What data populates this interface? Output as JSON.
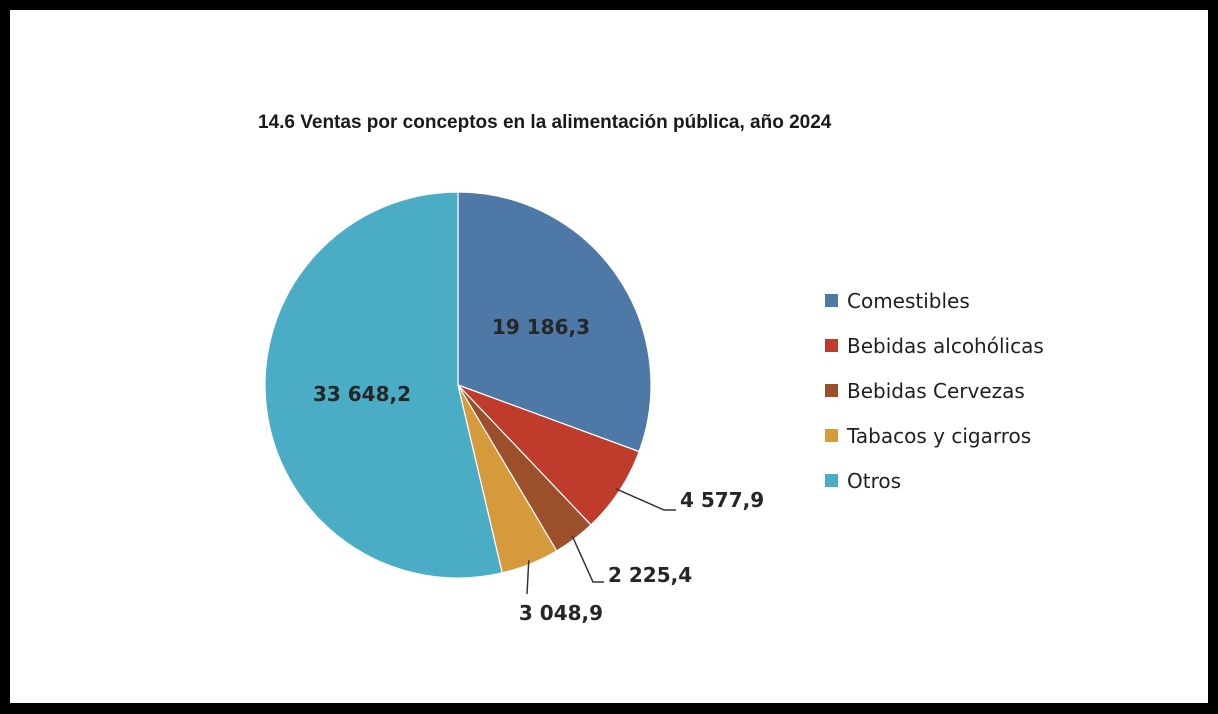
{
  "chart_data": {
    "type": "pie",
    "title": "14.6 Ventas por conceptos en la alimentación pública, año 2024",
    "slices": [
      {
        "name": "Comestibles",
        "value": 19186.3,
        "label": "19 186,3",
        "color": "#4e79a7"
      },
      {
        "name": "Bebidas alcohólicas",
        "value": 4577.9,
        "label": "4 577,9",
        "color": "#bf3b2b"
      },
      {
        "name": "Bebidas Cervezas",
        "value": 2225.4,
        "label": "2 225,4",
        "color": "#9c4f2b"
      },
      {
        "name": "Tabacos y cigarros",
        "value": 3048.9,
        "label": "3 048,9",
        "color": "#d59a3c"
      },
      {
        "name": "Otros",
        "value": 33648.2,
        "label": "33 648,2",
        "color": "#4bacc6"
      }
    ],
    "legend_position": "right"
  }
}
